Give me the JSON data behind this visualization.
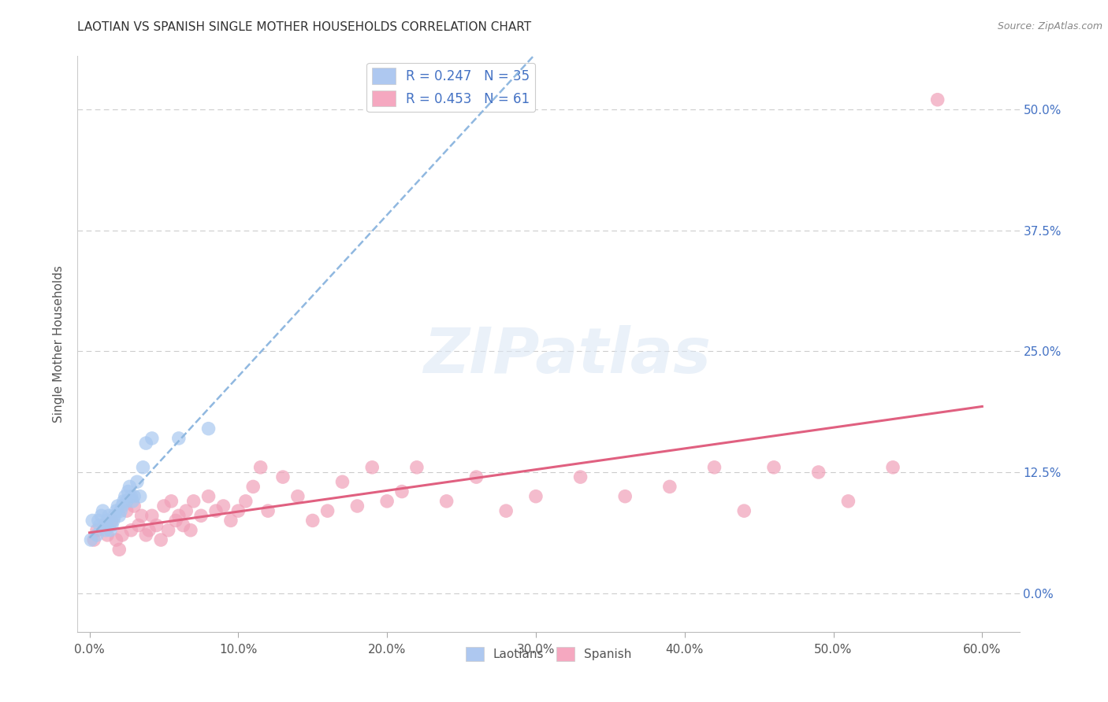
{
  "title": "LAOTIAN VS SPANISH SINGLE MOTHER HOUSEHOLDS CORRELATION CHART",
  "source": "Source: ZipAtlas.com",
  "ylabel": "Single Mother Households",
  "xlabel_ticks": [
    "0.0%",
    "10.0%",
    "20.0%",
    "30.0%",
    "40.0%",
    "50.0%",
    "60.0%"
  ],
  "xlabel_vals": [
    0.0,
    0.1,
    0.2,
    0.3,
    0.4,
    0.5,
    0.6
  ],
  "ylabel_ticks": [
    "0.0%",
    "12.5%",
    "25.0%",
    "37.5%",
    "50.0%"
  ],
  "ylabel_vals": [
    0.0,
    0.125,
    0.25,
    0.375,
    0.5
  ],
  "xlim": [
    -0.008,
    0.625
  ],
  "ylim": [
    -0.04,
    0.555
  ],
  "legend_label1": "R = 0.247   N = 35",
  "legend_label2": "R = 0.453   N = 61",
  "color_laotian": "#a8c8f0",
  "color_spanish": "#f0a0b8",
  "trendline_laotian_color": "#90b8e0",
  "trendline_spanish_color": "#e06080",
  "background_color": "#ffffff",
  "grid_color": "#cccccc",
  "watermark": "ZIPatlas",
  "laotian_x": [
    0.001,
    0.002,
    0.005,
    0.006,
    0.007,
    0.008,
    0.009,
    0.01,
    0.011,
    0.012,
    0.013,
    0.014,
    0.015,
    0.016,
    0.017,
    0.018,
    0.019,
    0.02,
    0.021,
    0.022,
    0.023,
    0.024,
    0.025,
    0.026,
    0.027,
    0.028,
    0.029,
    0.03,
    0.032,
    0.034,
    0.036,
    0.038,
    0.042,
    0.06,
    0.08
  ],
  "laotian_y": [
    0.055,
    0.075,
    0.06,
    0.075,
    0.07,
    0.08,
    0.085,
    0.07,
    0.065,
    0.075,
    0.08,
    0.065,
    0.07,
    0.075,
    0.08,
    0.085,
    0.09,
    0.08,
    0.085,
    0.09,
    0.095,
    0.1,
    0.095,
    0.105,
    0.11,
    0.1,
    0.095,
    0.1,
    0.115,
    0.1,
    0.13,
    0.155,
    0.16,
    0.16,
    0.17
  ],
  "spanish_x": [
    0.003,
    0.005,
    0.01,
    0.012,
    0.015,
    0.018,
    0.02,
    0.022,
    0.025,
    0.028,
    0.03,
    0.033,
    0.035,
    0.038,
    0.04,
    0.042,
    0.045,
    0.048,
    0.05,
    0.053,
    0.055,
    0.058,
    0.06,
    0.063,
    0.065,
    0.068,
    0.07,
    0.075,
    0.08,
    0.085,
    0.09,
    0.095,
    0.1,
    0.105,
    0.11,
    0.115,
    0.12,
    0.13,
    0.14,
    0.15,
    0.16,
    0.17,
    0.18,
    0.19,
    0.2,
    0.21,
    0.22,
    0.24,
    0.26,
    0.28,
    0.3,
    0.33,
    0.36,
    0.39,
    0.42,
    0.44,
    0.46,
    0.49,
    0.51,
    0.54,
    0.57
  ],
  "spanish_y": [
    0.055,
    0.065,
    0.07,
    0.06,
    0.075,
    0.055,
    0.045,
    0.06,
    0.085,
    0.065,
    0.09,
    0.07,
    0.08,
    0.06,
    0.065,
    0.08,
    0.07,
    0.055,
    0.09,
    0.065,
    0.095,
    0.075,
    0.08,
    0.07,
    0.085,
    0.065,
    0.095,
    0.08,
    0.1,
    0.085,
    0.09,
    0.075,
    0.085,
    0.095,
    0.11,
    0.13,
    0.085,
    0.12,
    0.1,
    0.075,
    0.085,
    0.115,
    0.09,
    0.13,
    0.095,
    0.105,
    0.13,
    0.095,
    0.12,
    0.085,
    0.1,
    0.12,
    0.1,
    0.11,
    0.13,
    0.085,
    0.13,
    0.125,
    0.095,
    0.13,
    0.51
  ]
}
